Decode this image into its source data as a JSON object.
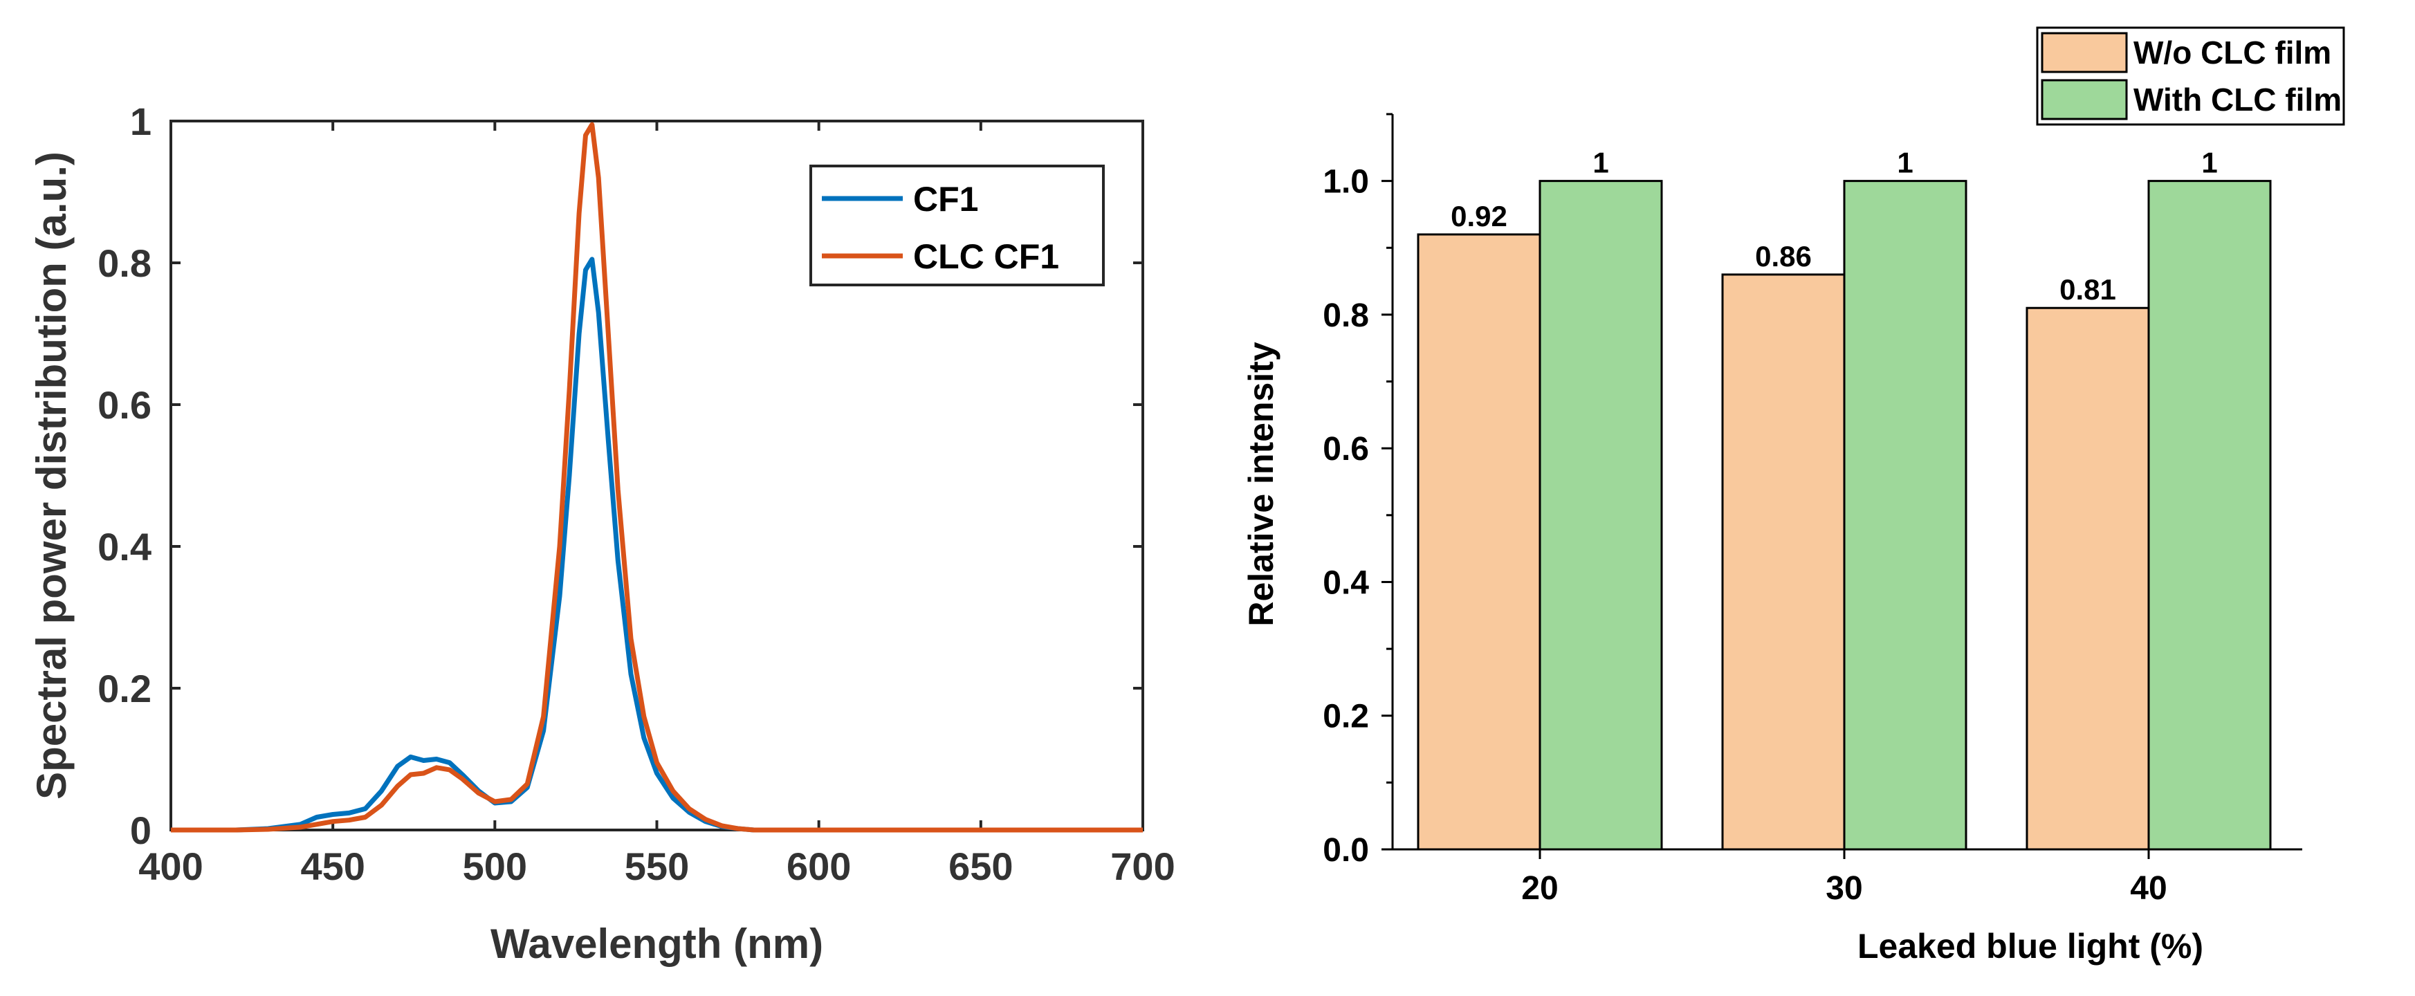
{
  "chart_data": [
    {
      "type": "line",
      "xlabel": "Wavelength (nm)",
      "ylabel": "Spectral power distribution (a.u.)",
      "xlim": [
        400,
        700
      ],
      "ylim": [
        0,
        1
      ],
      "xticks": [
        400,
        450,
        500,
        550,
        600,
        650,
        700
      ],
      "xtick_labels": [
        "400",
        "450",
        "500",
        "550",
        "600",
        "650",
        "700"
      ],
      "yticks": [
        0,
        0.2,
        0.4,
        0.6,
        0.8,
        1
      ],
      "ytick_labels": [
        "0",
        "0.2",
        "0.4",
        "0.6",
        "0.8",
        "1"
      ],
      "legend_position": "top-right",
      "series": [
        {
          "name": "CF1",
          "color": "#0072BD",
          "x": [
            400,
            420,
            430,
            440,
            445,
            450,
            455,
            460,
            465,
            470,
            474,
            478,
            482,
            486,
            490,
            495,
            500,
            505,
            510,
            515,
            520,
            523,
            526,
            528,
            530,
            532,
            535,
            538,
            542,
            546,
            550,
            555,
            560,
            565,
            570,
            575,
            580,
            600,
            700
          ],
          "y": [
            0,
            0,
            0.002,
            0.008,
            0.018,
            0.022,
            0.024,
            0.03,
            0.055,
            0.09,
            0.103,
            0.098,
            0.1,
            0.095,
            0.078,
            0.055,
            0.038,
            0.04,
            0.06,
            0.14,
            0.33,
            0.5,
            0.7,
            0.79,
            0.805,
            0.73,
            0.55,
            0.38,
            0.22,
            0.13,
            0.08,
            0.045,
            0.025,
            0.012,
            0.005,
            0.002,
            0,
            0,
            0
          ]
        },
        {
          "name": "CLC CF1",
          "color": "#D95319",
          "x": [
            400,
            420,
            430,
            440,
            445,
            450,
            455,
            460,
            465,
            470,
            474,
            478,
            482,
            486,
            490,
            495,
            500,
            505,
            510,
            515,
            520,
            523,
            526,
            528,
            530,
            532,
            535,
            538,
            542,
            546,
            550,
            555,
            560,
            565,
            570,
            575,
            580,
            600,
            700
          ],
          "y": [
            0,
            0,
            0.001,
            0.004,
            0.008,
            0.012,
            0.014,
            0.018,
            0.035,
            0.062,
            0.078,
            0.08,
            0.088,
            0.085,
            0.072,
            0.052,
            0.04,
            0.043,
            0.065,
            0.16,
            0.4,
            0.62,
            0.87,
            0.98,
            0.995,
            0.92,
            0.7,
            0.48,
            0.27,
            0.16,
            0.095,
            0.055,
            0.03,
            0.015,
            0.006,
            0.002,
            0,
            0,
            0
          ]
        }
      ]
    },
    {
      "type": "bar",
      "xlabel": "Leaked blue light (%)",
      "ylabel": "Relative intensity",
      "categories": [
        "20",
        "30",
        "40"
      ],
      "ylim": [
        0,
        1.1
      ],
      "yticks": [
        0,
        0.2,
        0.4,
        0.6,
        0.8,
        1.0
      ],
      "ytick_labels": [
        "0.0",
        "0.2",
        "0.4",
        "0.6",
        "0.8",
        "1.0"
      ],
      "legend_position": "top-right",
      "series": [
        {
          "name": "W/o CLC film",
          "color": "#F9C99D",
          "values": [
            0.92,
            0.86,
            0.81
          ],
          "data_labels": [
            "0.92",
            "0.86",
            "0.81"
          ]
        },
        {
          "name": "With CLC film",
          "color": "#9ED89A",
          "values": [
            1,
            1,
            1
          ],
          "data_labels": [
            "1",
            "1",
            "1"
          ]
        }
      ]
    }
  ]
}
